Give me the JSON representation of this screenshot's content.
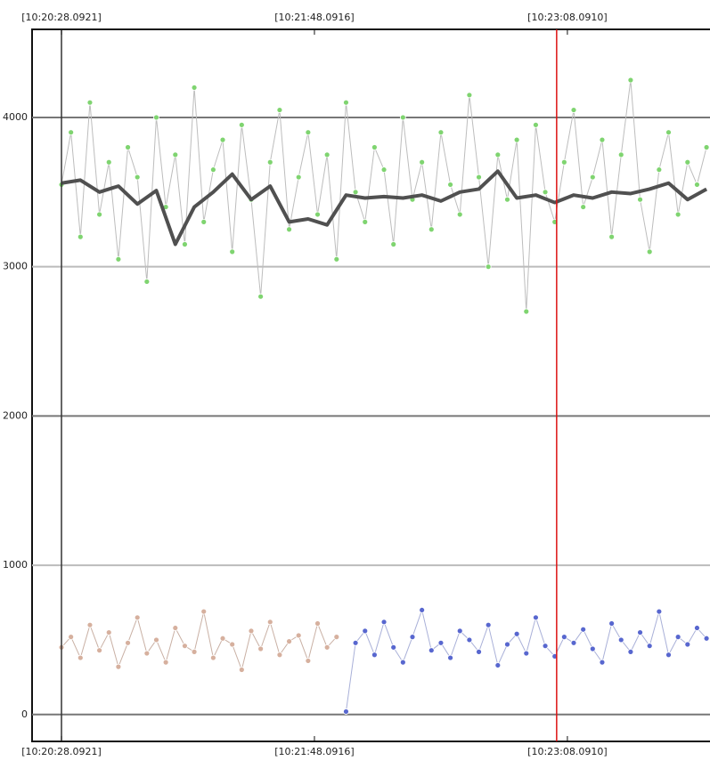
{
  "chart_data": {
    "type": "scatter-line",
    "xlim": [
      -9.3,
      205.1
    ],
    "xticks": [
      {
        "value": 0,
        "label": "[10:20:28.0921]"
      },
      {
        "value": 80,
        "label": "[10:21:48.0916]"
      },
      {
        "value": 160,
        "label": "[10:23:08.0910]"
      }
    ],
    "ylim": [
      -180,
      4590
    ],
    "yticks": [
      0,
      1000,
      2000,
      3000,
      4000
    ],
    "grid": true,
    "vlines": [
      {
        "x": 0,
        "color": "#333333"
      },
      {
        "x": 156.6,
        "color": "#dd1111"
      }
    ],
    "series": [
      {
        "color": "#7fd470",
        "line_color": "#bdbdbd",
        "marker": true,
        "x": [
          0,
          3,
          6,
          9,
          12,
          15,
          18,
          21,
          24,
          27,
          30,
          33,
          36,
          39,
          42,
          45,
          48,
          51,
          54,
          57,
          60,
          63,
          66,
          69,
          72,
          75,
          78,
          81,
          84,
          87,
          90,
          93,
          96,
          99,
          102,
          105,
          108,
          111,
          114,
          117,
          120,
          123,
          126,
          129,
          132,
          135,
          138,
          141,
          144,
          147,
          150,
          153,
          156,
          159,
          162,
          165,
          168,
          171,
          174,
          177,
          180,
          183,
          186,
          189,
          192,
          195,
          198,
          201,
          204
        ],
        "values": [
          3550,
          3900,
          3200,
          4100,
          3350,
          3700,
          3050,
          3800,
          3600,
          2900,
          4000,
          3400,
          3750,
          3150,
          4200,
          3300,
          3650,
          3850,
          3100,
          3950,
          3450,
          2800,
          3700,
          4050,
          3250,
          3600,
          3900,
          3350,
          3750,
          3050,
          4100,
          3500,
          3300,
          3800,
          3650,
          3150,
          4000,
          3450,
          3700,
          3250,
          3900,
          3550,
          3350,
          4150,
          3600,
          3000,
          3750,
          3450,
          3850,
          2700,
          3950,
          3500,
          3300,
          3700,
          4050,
          3400,
          3600,
          3850,
          3200,
          3750,
          4250,
          3450,
          3100,
          3650,
          3900,
          3350,
          3700,
          3550,
          3800
        ]
      },
      {
        "color": "#505050",
        "marker": false,
        "x": [
          0,
          6,
          12,
          18,
          24,
          30,
          36,
          42,
          48,
          54,
          60,
          66,
          72,
          78,
          84,
          90,
          96,
          102,
          108,
          114,
          120,
          126,
          132,
          138,
          144,
          150,
          156,
          162,
          168,
          174,
          180,
          186,
          192,
          198,
          204
        ],
        "values": [
          3560,
          3580,
          3500,
          3540,
          3420,
          3510,
          3150,
          3400,
          3500,
          3620,
          3450,
          3540,
          3300,
          3320,
          3280,
          3480,
          3460,
          3470,
          3460,
          3480,
          3440,
          3500,
          3520,
          3640,
          3460,
          3480,
          3430,
          3480,
          3460,
          3500,
          3490,
          3520,
          3560,
          3450,
          3520
        ]
      },
      {
        "color": "#d6b09e",
        "line_color": "#c9b0a4",
        "marker": true,
        "x": [
          0,
          3,
          6,
          9,
          12,
          15,
          18,
          21,
          24,
          27,
          30,
          33,
          36,
          39,
          42,
          45,
          48,
          51,
          54,
          57,
          60,
          63,
          66,
          69,
          72,
          75,
          78,
          81,
          84,
          87
        ],
        "values": [
          450,
          520,
          380,
          600,
          430,
          550,
          320,
          480,
          650,
          410,
          500,
          350,
          580,
          460,
          420,
          690,
          380,
          510,
          470,
          300,
          560,
          440,
          620,
          400,
          490,
          530,
          360,
          610,
          450,
          520
        ]
      },
      {
        "color": "#5867cf",
        "line_color": "#a9b0d8",
        "marker": true,
        "x": [
          90,
          93,
          96,
          99,
          102,
          105,
          108,
          111,
          114,
          117,
          120,
          123,
          126,
          129,
          132,
          135,
          138,
          141,
          144,
          147,
          150,
          153,
          156,
          159,
          162,
          165,
          168,
          171,
          174,
          177,
          180,
          183,
          186,
          189,
          192,
          195,
          198,
          201,
          204
        ],
        "values": [
          20,
          480,
          560,
          400,
          620,
          450,
          350,
          520,
          700,
          430,
          480,
          380,
          560,
          500,
          420,
          600,
          330,
          470,
          540,
          410,
          650,
          460,
          390,
          520,
          480,
          570,
          440,
          350,
          610,
          500,
          420,
          550,
          460,
          690,
          400,
          520,
          470,
          580,
          510
        ]
      }
    ]
  }
}
